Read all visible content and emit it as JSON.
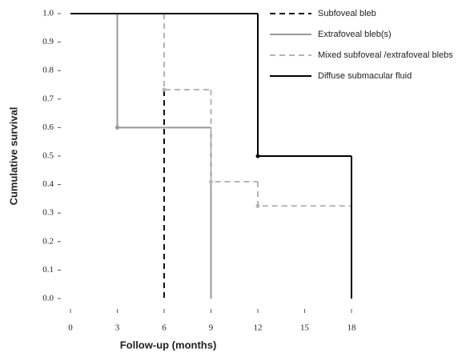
{
  "chart_data": {
    "type": "step",
    "x_label": "Follow-up (months)",
    "y_label": "Cumulative survival",
    "xlim": [
      0,
      18
    ],
    "ylim": [
      0,
      1
    ],
    "xticks": [
      0,
      3,
      6,
      9,
      12,
      15,
      18
    ],
    "yticks": [
      {
        "value": 0,
        "label": "0.0"
      },
      0.1,
      0.2,
      0.3,
      0.4,
      0.5,
      0.6,
      0.7,
      0.8,
      0.9,
      {
        "value": 1,
        "label": "1.0"
      }
    ],
    "legend": "top-right",
    "series": [
      {
        "name": "Subfoveal bleb",
        "color": "#111111",
        "dash": "7,5",
        "x": [
          0,
          6
        ],
        "values": [
          1,
          0
        ]
      },
      {
        "name": "Extrafoveal bleb(s)",
        "color": "#999999",
        "dash": "none",
        "x": [
          0,
          3,
          9
        ],
        "values": [
          1,
          0.6,
          0
        ]
      },
      {
        "name": "Mixed subfoveal /extrafoveal blebs",
        "color": "#b5b5b5",
        "dash": "7,5",
        "x": [
          0,
          6,
          9,
          12,
          18
        ],
        "values": [
          1,
          0.733,
          0.41,
          0.325,
          0
        ]
      },
      {
        "name": "Diffuse submacular fluid",
        "color": "#000000",
        "dash": "none",
        "x": [
          0,
          12,
          18
        ],
        "values": [
          1,
          0.5,
          0
        ]
      }
    ]
  }
}
